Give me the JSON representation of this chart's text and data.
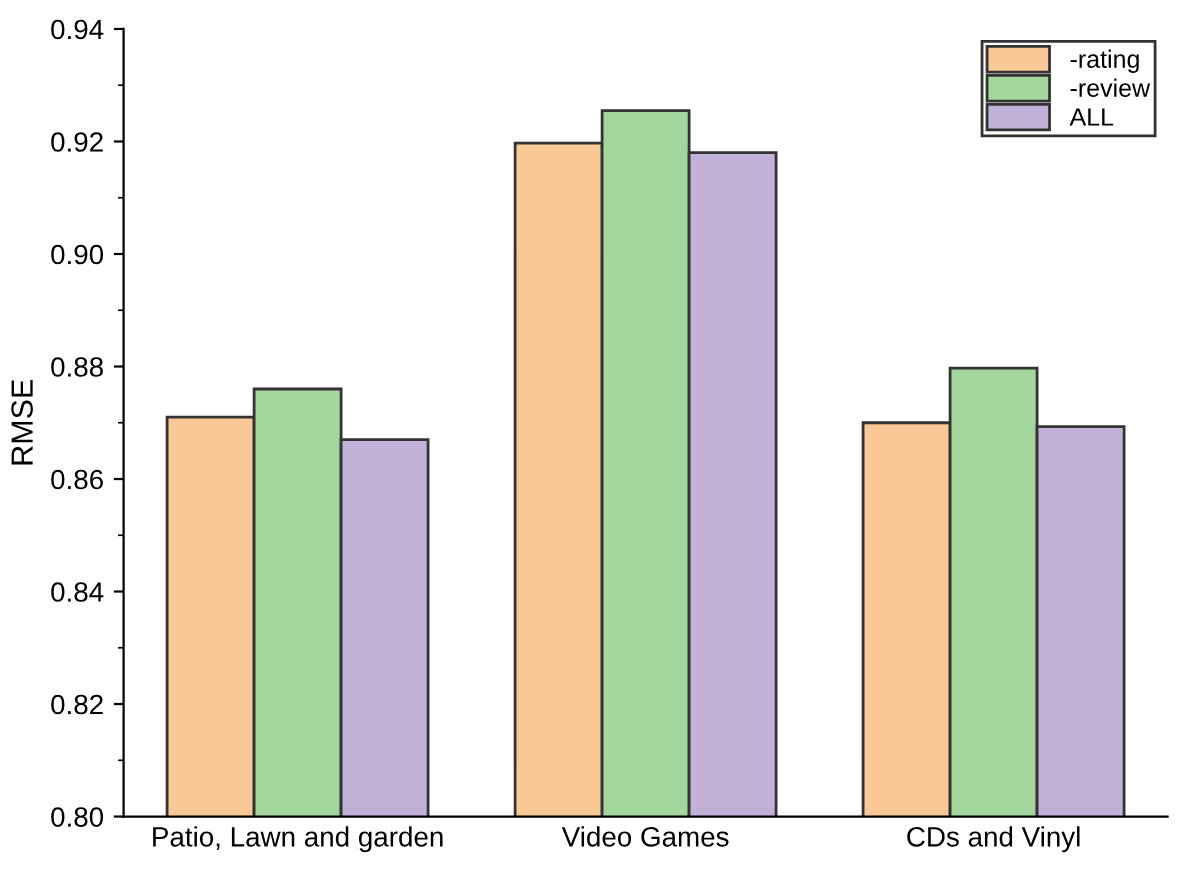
{
  "chart_data": {
    "type": "bar",
    "ylabel": "RMSE",
    "categories": [
      "Patio, Lawn and garden",
      "Video Games",
      "CDs and Vinyl"
    ],
    "series": [
      {
        "name": "-rating",
        "color": "#f9c896",
        "values": [
          0.871,
          0.9197,
          0.87
        ]
      },
      {
        "name": "-review",
        "color": "#a2d69c",
        "values": [
          0.876,
          0.9255,
          0.8797
        ]
      },
      {
        "name": "ALL",
        "color": "#c1b1d8",
        "values": [
          0.867,
          0.918,
          0.8693
        ]
      }
    ],
    "ylim": [
      0.8,
      0.94
    ],
    "yticks": [
      {
        "value": 0.8,
        "label": "0.80"
      },
      {
        "value": 0.82,
        "label": "0.82"
      },
      {
        "value": 0.84,
        "label": "0.84"
      },
      {
        "value": 0.86,
        "label": "0.86"
      },
      {
        "value": 0.88,
        "label": "0.88"
      },
      {
        "value": 0.9,
        "label": "0.90"
      },
      {
        "value": 0.92,
        "label": "0.92"
      },
      {
        "value": 0.94,
        "label": "0.94"
      }
    ],
    "grid": false,
    "legend": "top right"
  }
}
